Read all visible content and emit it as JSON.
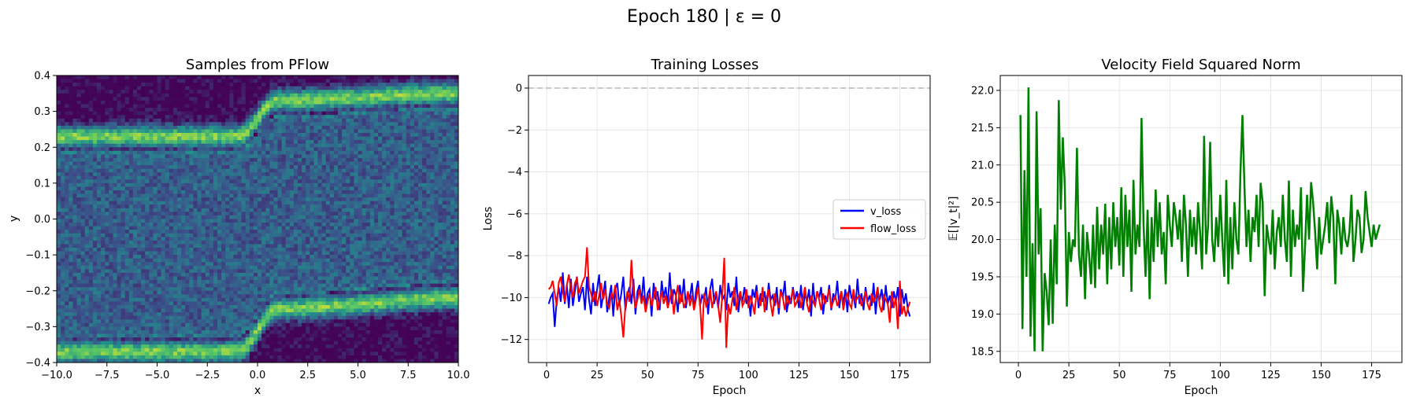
{
  "suptitle": "Epoch 180 | ε = 0",
  "chart_data": [
    {
      "type": "heatmap",
      "title": "Samples from PFlow",
      "xlabel": "x",
      "ylabel": "y",
      "xlim": [
        -10,
        10
      ],
      "ylim": [
        -0.4,
        0.4
      ],
      "xticks": [
        -10,
        -7.5,
        -5,
        -2.5,
        0,
        2.5,
        5,
        7.5,
        10
      ],
      "xtick_labels": [
        "−10.0",
        "−7.5",
        "−5.0",
        "−2.5",
        "0.0",
        "2.5",
        "5.0",
        "7.5",
        "10.0"
      ],
      "yticks": [
        -0.4,
        -0.3,
        -0.2,
        -0.1,
        0.0,
        0.1,
        0.2,
        0.3,
        0.4
      ],
      "ytick_labels": [
        "−0.4",
        "−0.3",
        "−0.2",
        "−0.1",
        "0.0",
        "0.1",
        "0.2",
        "0.3",
        "0.4"
      ],
      "colormap": "viridis",
      "density_bands": [
        {
          "x": [
            -10,
            -1,
            1,
            10
          ],
          "y": [
            0.23,
            0.23,
            0.33,
            0.35
          ]
        },
        {
          "x": [
            -10,
            -1,
            1,
            10
          ],
          "y": [
            -0.37,
            -0.37,
            -0.25,
            -0.22
          ]
        }
      ]
    },
    {
      "type": "line",
      "title": "Training Losses",
      "xlabel": "Epoch",
      "ylabel": "Loss",
      "xlim": [
        -9,
        190
      ],
      "ylim": [
        -13.1,
        0.6
      ],
      "xticks": [
        0,
        25,
        50,
        75,
        100,
        125,
        150,
        175
      ],
      "yticks": [
        0,
        -2,
        -4,
        -6,
        -8,
        -10,
        -12
      ],
      "ytick_labels": [
        "0",
        "−2",
        "−4",
        "−6",
        "−8",
        "−10",
        "−12"
      ],
      "grid": true,
      "reference_line": 0,
      "legend_position": "center-right",
      "series": [
        {
          "name": "v_loss",
          "color": "#0000ff",
          "values": [
            -10.3,
            -10.0,
            -9.8,
            -11.4,
            -10.1,
            -9.5,
            -10.2,
            -8.8,
            -10.3,
            -9.4,
            -10.5,
            -9.1,
            -10.4,
            -9.7,
            -9.0,
            -10.2,
            -9.8,
            -9.5,
            -10.6,
            -9.0,
            -10.1,
            -10.8,
            -9.3,
            -10.4,
            -9.6,
            -8.9,
            -10.5,
            -9.9,
            -9.2,
            -10.7,
            -10.0,
            -9.4,
            -10.9,
            -9.6,
            -9.3,
            -10.4,
            -9.8,
            -9.0,
            -10.6,
            -9.9,
            -9.5,
            -10.3,
            -9.1,
            -10.8,
            -9.7,
            -9.4,
            -10.2,
            -9.0,
            -10.5,
            -9.8,
            -9.6,
            -10.9,
            -9.3,
            -10.1,
            -9.7,
            -10.6,
            -9.2,
            -10.0,
            -9.5,
            -10.4,
            -8.8,
            -10.3,
            -9.6,
            -9.9,
            -10.7,
            -9.4,
            -10.2,
            -9.1,
            -10.5,
            -9.8,
            -10.0,
            -9.3,
            -10.6,
            -9.7,
            -9.2,
            -10.4,
            -9.9,
            -10.1,
            -9.5,
            -10.8,
            -9.6,
            -9.1,
            -10.3,
            -9.8,
            -10.5,
            -9.4,
            -10.1,
            -9.9,
            -10.6,
            -9.3,
            -10.0,
            -9.7,
            -10.4,
            -9.0,
            -10.7,
            -9.8,
            -10.2,
            -9.5,
            -10.3,
            -9.9,
            -10.9,
            -9.6,
            -10.0,
            -9.4,
            -10.5,
            -9.8,
            -10.2,
            -9.7,
            -10.6,
            -9.3,
            -10.1,
            -9.9,
            -10.4,
            -9.5,
            -10.8,
            -9.6,
            -10.0,
            -9.2,
            -10.7,
            -9.9,
            -10.3,
            -9.5,
            -10.1,
            -9.7,
            -10.5,
            -9.4,
            -10.6,
            -9.8,
            -10.2,
            -9.6,
            -10.9,
            -9.3,
            -10.4,
            -9.7,
            -10.0,
            -9.5,
            -10.8,
            -9.9,
            -10.2,
            -9.4,
            -10.6,
            -9.8,
            -10.1,
            -9.2,
            -10.5,
            -9.7,
            -10.3,
            -9.6,
            -10.7,
            -9.4,
            -10.0,
            -9.9,
            -10.5,
            -9.1,
            -10.3,
            -9.8,
            -10.6,
            -9.5,
            -10.2,
            -9.9,
            -10.4,
            -9.3,
            -10.8,
            -9.7,
            -10.1,
            -9.6,
            -10.6,
            -9.4,
            -10.3,
            -9.9,
            -10.5,
            -9.7,
            -10.2,
            -9.5,
            -10.9,
            -9.6,
            -10.3,
            -9.8,
            -10.6,
            -10.9
          ]
        },
        {
          "name": "flow_loss",
          "color": "#ff0000",
          "values": [
            -9.6,
            -9.5,
            -9.2,
            -9.8,
            -10.4,
            -9.3,
            -9.0,
            -9.7,
            -10.2,
            -9.4,
            -8.9,
            -9.6,
            -10.0,
            -9.3,
            -9.1,
            -9.8,
            -9.5,
            -9.2,
            -9.0,
            -7.6,
            -9.5,
            -9.8,
            -10.2,
            -9.7,
            -10.4,
            -9.9,
            -9.3,
            -10.1,
            -9.6,
            -10.3,
            -10.5,
            -9.8,
            -10.0,
            -9.4,
            -10.6,
            -10.1,
            -10.9,
            -11.9,
            -10.4,
            -9.7,
            -10.2,
            -8.2,
            -9.8,
            -10.5,
            -10.1,
            -9.6,
            -10.3,
            -9.9,
            -10.7,
            -10.2,
            -9.8,
            -10.4,
            -10.0,
            -9.5,
            -10.6,
            -10.2,
            -9.7,
            -10.3,
            -9.9,
            -10.5,
            -10.1,
            -9.6,
            -10.8,
            -10.0,
            -9.4,
            -10.3,
            -9.8,
            -10.5,
            -10.2,
            -9.7,
            -10.4,
            -9.9,
            -10.6,
            -10.1,
            -9.5,
            -10.3,
            -12.0,
            -9.8,
            -10.4,
            -10.2,
            -9.6,
            -10.5,
            -10.0,
            -9.7,
            -10.4,
            -11.2,
            -9.9,
            -8.1,
            -12.4,
            -10.3,
            -10.8,
            -10.1,
            -9.5,
            -10.6,
            -10.0,
            -9.7,
            -10.4,
            -10.2,
            -9.6,
            -10.5,
            -9.9,
            -10.3,
            -10.8,
            -9.7,
            -10.1,
            -10.4,
            -9.5,
            -10.7,
            -10.0,
            -9.6,
            -10.3,
            -10.9,
            -9.8,
            -10.2,
            -10.5,
            -9.7,
            -10.0,
            -10.6,
            -9.9,
            -10.3,
            -10.1,
            -9.6,
            -10.4,
            -10.2,
            -9.8,
            -10.5,
            -10.0,
            -9.5,
            -10.3,
            -10.7,
            -9.9,
            -10.2,
            -10.4,
            -9.7,
            -10.1,
            -10.6,
            -9.8,
            -10.3,
            -10.0,
            -9.6,
            -10.5,
            -10.2,
            -9.9,
            -10.4,
            -10.1,
            -9.7,
            -10.6,
            -10.0,
            -9.8,
            -10.3,
            -10.5,
            -9.6,
            -10.2,
            -10.0,
            -9.9,
            -10.4,
            -10.1,
            -9.7,
            -10.3,
            -10.6,
            -9.8,
            -10.2,
            -10.0,
            -9.5,
            -10.4,
            -10.7,
            -9.9,
            -10.1,
            -10.3,
            -11.2,
            -9.7,
            -10.5,
            -10.0,
            -11.5,
            -9.2,
            -10.8,
            -10.4,
            -10.9,
            -10.5,
            -10.2
          ]
        }
      ]
    },
    {
      "type": "line",
      "title": "Velocity Field Squared Norm",
      "xlabel": "Epoch",
      "ylabel": "𝔼[|v_t|²]",
      "xlim": [
        -9,
        190
      ],
      "ylim": [
        18.35,
        22.2
      ],
      "xticks": [
        0,
        25,
        50,
        75,
        100,
        125,
        150,
        175
      ],
      "yticks": [
        18.5,
        19.0,
        19.5,
        20.0,
        20.5,
        21.0,
        21.5,
        22.0
      ],
      "ytick_labels": [
        "18.5",
        "19.0",
        "19.5",
        "20.0",
        "20.5",
        "21.0",
        "21.5",
        "22.0"
      ],
      "grid": true,
      "series": [
        {
          "name": "",
          "color": "#008000",
          "values": [
            21.67,
            18.8,
            20.93,
            19.5,
            22.04,
            18.7,
            19.95,
            18.5,
            21.72,
            19.8,
            20.42,
            18.5,
            19.55,
            19.3,
            18.85,
            20.0,
            18.87,
            20.2,
            19.4,
            21.87,
            20.4,
            21.37,
            20.71,
            19.1,
            20.1,
            19.7,
            20.0,
            19.9,
            21.23,
            19.8,
            19.5,
            20.2,
            19.2,
            20.1,
            19.8,
            19.4,
            20.2,
            19.35,
            20.44,
            19.6,
            20.2,
            19.8,
            20.48,
            19.4,
            20.3,
            19.6,
            20.5,
            19.9,
            20.3,
            19.65,
            20.7,
            19.5,
            20.6,
            19.9,
            20.4,
            19.3,
            20.8,
            19.8,
            20.2,
            19.9,
            21.63,
            20.2,
            19.5,
            20.4,
            19.2,
            20.3,
            19.7,
            20.67,
            19.9,
            20.5,
            19.8,
            20.1,
            19.4,
            20.6,
            20.2,
            19.9,
            20.5,
            20.3,
            20.0,
            20.4,
            19.7,
            20.6,
            20.2,
            19.5,
            20.4,
            19.9,
            20.3,
            19.8,
            20.5,
            20.1,
            19.6,
            21.39,
            19.8,
            20.2,
            21.31,
            20.0,
            19.7,
            20.3,
            19.9,
            20.6,
            20.0,
            19.5,
            20.8,
            19.4,
            20.3,
            19.6,
            20.5,
            20.0,
            19.8,
            20.9,
            21.67,
            20.7,
            19.9,
            20.4,
            19.7,
            20.3,
            20.1,
            20.6,
            19.9,
            20.76,
            20.5,
            19.24,
            20.2,
            20.0,
            19.8,
            20.4,
            19.6,
            20.1,
            20.3,
            19.9,
            20.6,
            20.0,
            19.7,
            20.79,
            19.5,
            20.4,
            19.9,
            20.2,
            20.0,
            20.7,
            19.3,
            19.9,
            20.6,
            20.0,
            20.77,
            20.5,
            20.1,
            19.6,
            20.3,
            19.8,
            20.0,
            20.2,
            20.5,
            19.95,
            20.58,
            20.3,
            19.4,
            20.4,
            20.2,
            19.8,
            20.3,
            20.0,
            19.9,
            20.1,
            20.6,
            19.7,
            20.0,
            20.4,
            20.3,
            19.82,
            20.0,
            20.65,
            20.3,
            20.1,
            19.9,
            20.2,
            20.0,
            20.1,
            20.2
          ]
        }
      ]
    }
  ]
}
